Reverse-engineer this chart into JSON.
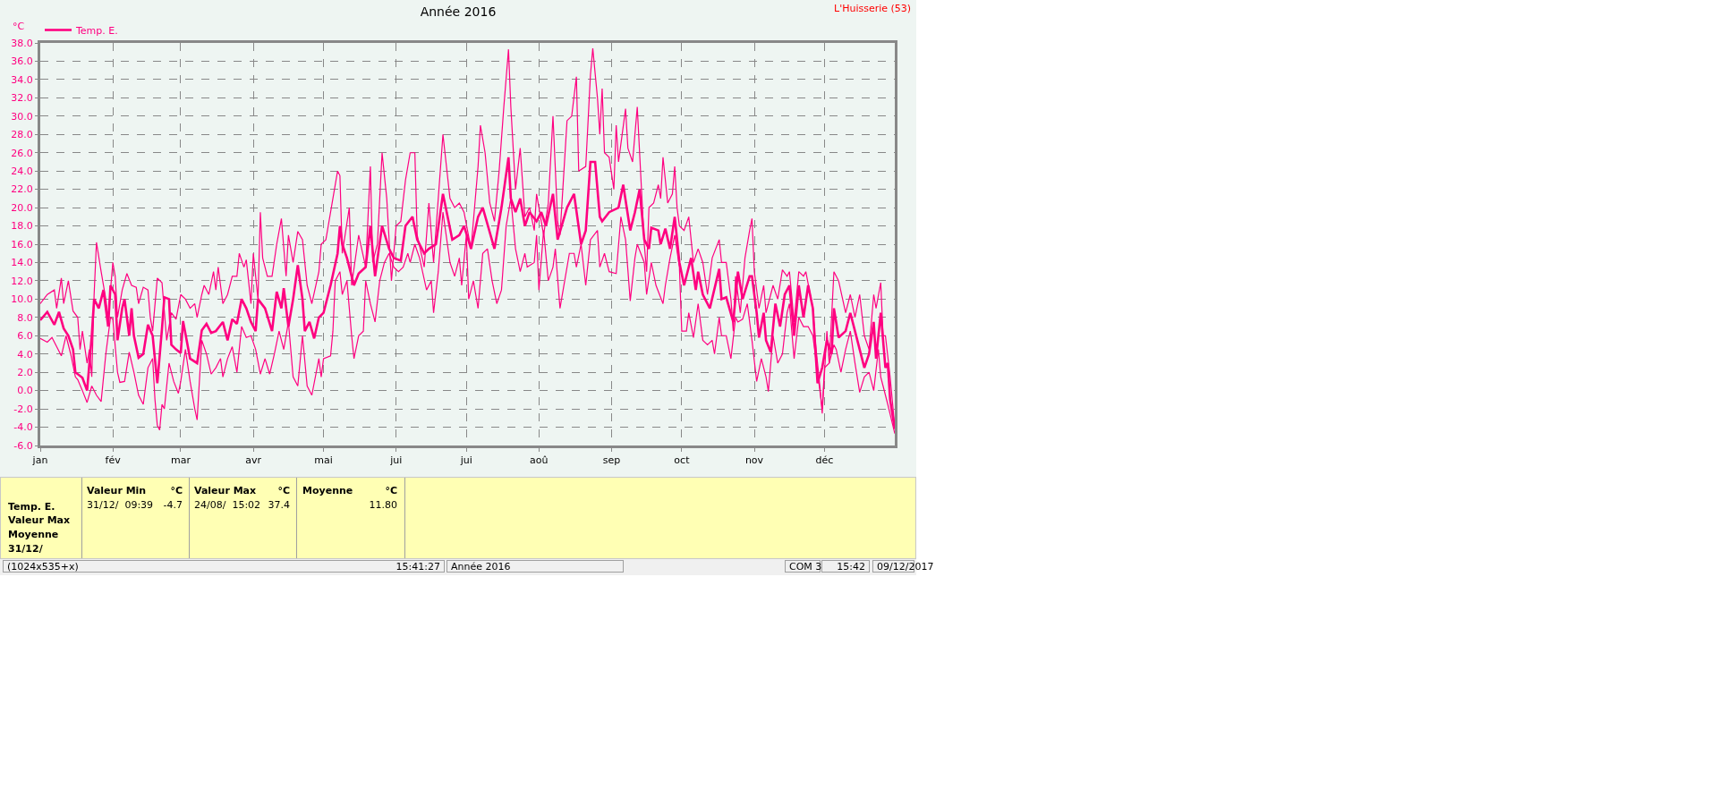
{
  "chart_data": {
    "type": "line",
    "title": "Année 2016",
    "ylabel": "°C",
    "xlim": [
      "2016-01-01",
      "2016-12-31"
    ],
    "xticks": [
      {
        "value": "2016-01-01",
        "label": "jan"
      },
      {
        "value": "2016-02-01",
        "label": "fév"
      },
      {
        "value": "2016-03-01",
        "label": "mar"
      },
      {
        "value": "2016-04-01",
        "label": "avr"
      },
      {
        "value": "2016-05-01",
        "label": "mai"
      },
      {
        "value": "2016-06-01",
        "label": "jui"
      },
      {
        "value": "2016-07-01",
        "label": "jui"
      },
      {
        "value": "2016-08-01",
        "label": "aoû"
      },
      {
        "value": "2016-09-01",
        "label": "sep"
      },
      {
        "value": "2016-10-01",
        "label": "oct"
      },
      {
        "value": "2016-11-01",
        "label": "nov"
      },
      {
        "value": "2016-12-01",
        "label": "déc"
      }
    ],
    "ylim": [
      -6,
      38
    ],
    "yticks": [
      {
        "value": -6,
        "label": "-6.0"
      },
      {
        "value": -4,
        "label": "-4.0"
      },
      {
        "value": -2,
        "label": "-2.0"
      },
      {
        "value": 0,
        "label": "0.0"
      },
      {
        "value": 2,
        "label": "2.0"
      },
      {
        "value": 4,
        "label": "4.0"
      },
      {
        "value": 6,
        "label": "6.0"
      },
      {
        "value": 8,
        "label": "8.0"
      },
      {
        "value": 10,
        "label": "10.0"
      },
      {
        "value": 12,
        "label": "12.0"
      },
      {
        "value": 14,
        "label": "14.0"
      },
      {
        "value": 16,
        "label": "16.0"
      },
      {
        "value": 18,
        "label": "18.0"
      },
      {
        "value": 20,
        "label": "20.0"
      },
      {
        "value": 22,
        "label": "22.0"
      },
      {
        "value": 24,
        "label": "24.0"
      },
      {
        "value": 26,
        "label": "26.0"
      },
      {
        "value": 28,
        "label": "28.0"
      },
      {
        "value": 30,
        "label": "30.0"
      },
      {
        "value": 32,
        "label": "32.0"
      },
      {
        "value": 34,
        "label": "34.0"
      },
      {
        "value": 36,
        "label": "36.0"
      },
      {
        "value": 38,
        "label": "38.0"
      }
    ],
    "grid": true,
    "legend": "top left",
    "marker": "none",
    "line_style": "solid",
    "series": [
      {
        "name": "Temp. E.",
        "color": "#ff0080",
        "x": [
          "2016-01-01",
          "2016-01-04",
          "2016-01-07",
          "2016-01-09",
          "2016-01-11",
          "2016-01-13",
          "2016-01-15",
          "2016-01-16",
          "2016-01-19",
          "2016-01-21",
          "2016-01-23",
          "2016-01-24",
          "2016-01-26",
          "2016-01-28",
          "2016-01-30",
          "2016-01-31",
          "2016-02-02",
          "2016-02-03",
          "2016-02-05",
          "2016-02-06",
          "2016-02-08",
          "2016-02-09",
          "2016-02-10",
          "2016-02-12",
          "2016-02-14",
          "2016-02-16",
          "2016-02-18",
          "2016-02-20",
          "2016-02-22",
          "2016-02-23",
          "2016-02-25",
          "2016-02-26",
          "2016-02-28",
          "2016-03-01",
          "2016-03-02",
          "2016-03-05",
          "2016-03-08",
          "2016-03-10",
          "2016-03-12",
          "2016-03-14",
          "2016-03-16",
          "2016-03-19",
          "2016-03-21",
          "2016-03-23",
          "2016-03-25",
          "2016-03-27",
          "2016-03-29",
          "2016-03-31",
          "2016-04-02",
          "2016-04-03",
          "2016-04-06",
          "2016-04-09",
          "2016-04-11",
          "2016-04-13",
          "2016-04-14",
          "2016-04-16",
          "2016-04-18",
          "2016-04-20",
          "2016-04-22",
          "2016-04-23",
          "2016-04-25",
          "2016-04-27",
          "2016-04-29",
          "2016-05-01",
          "2016-05-04",
          "2016-05-07",
          "2016-05-08",
          "2016-05-09",
          "2016-05-11",
          "2016-05-14",
          "2016-05-16",
          "2016-05-19",
          "2016-05-21",
          "2016-05-23",
          "2016-05-26",
          "2016-05-29",
          "2016-05-31",
          "2016-06-03",
          "2016-06-05",
          "2016-06-08",
          "2016-06-10",
          "2016-06-13",
          "2016-06-15",
          "2016-06-18",
          "2016-06-21",
          "2016-06-25",
          "2016-06-28",
          "2016-06-30",
          "2016-07-03",
          "2016-07-06",
          "2016-07-08",
          "2016-07-13",
          "2016-07-16",
          "2016-07-19",
          "2016-07-20",
          "2016-07-22",
          "2016-07-24",
          "2016-07-26",
          "2016-07-28",
          "2016-07-31",
          "2016-08-02",
          "2016-08-04",
          "2016-08-07",
          "2016-08-09",
          "2016-08-13",
          "2016-08-16",
          "2016-08-19",
          "2016-08-21",
          "2016-08-23",
          "2016-08-25",
          "2016-08-27",
          "2016-08-28",
          "2016-08-31",
          "2016-09-04",
          "2016-09-06",
          "2016-09-09",
          "2016-09-11",
          "2016-09-13",
          "2016-09-15",
          "2016-09-17",
          "2016-09-18",
          "2016-09-21",
          "2016-09-22",
          "2016-09-24",
          "2016-09-26",
          "2016-09-28",
          "2016-09-30",
          "2016-10-02",
          "2016-10-05",
          "2016-10-07",
          "2016-10-08",
          "2016-10-10",
          "2016-10-13",
          "2016-10-17",
          "2016-10-18",
          "2016-10-20",
          "2016-10-23",
          "2016-10-25",
          "2016-10-27",
          "2016-10-30",
          "2016-10-31",
          "2016-11-02",
          "2016-11-03",
          "2016-11-05",
          "2016-11-06",
          "2016-11-08",
          "2016-11-10",
          "2016-11-12",
          "2016-11-14",
          "2016-11-16",
          "2016-11-18",
          "2016-11-20",
          "2016-11-22",
          "2016-11-24",
          "2016-11-26",
          "2016-11-28",
          "2016-11-30",
          "2016-12-02",
          "2016-12-04",
          "2016-12-05",
          "2016-12-07",
          "2016-12-10",
          "2016-12-12",
          "2016-12-14",
          "2016-12-18",
          "2016-12-20",
          "2016-12-22",
          "2016-12-23",
          "2016-12-25",
          "2016-12-27",
          "2016-12-28",
          "2016-12-29",
          "2016-12-31"
        ],
        "values": [
          7.7,
          8.6,
          7.2,
          8.6,
          6.8,
          6.0,
          4.5,
          2.0,
          1.4,
          0.0,
          6.0,
          10.0,
          9.0,
          11.0,
          7.0,
          11.5,
          10.5,
          5.5,
          9.0,
          10.0,
          6.0,
          9.0,
          6.0,
          3.6,
          4.0,
          7.2,
          6.0,
          0.8,
          6.8,
          10.2,
          10.0,
          5.0,
          4.5,
          4.1,
          7.6,
          3.5,
          3.0,
          6.6,
          7.3,
          6.3,
          6.5,
          7.5,
          5.5,
          7.8,
          7.3,
          10.0,
          9.0,
          7.5,
          6.5,
          10.0,
          9.0,
          6.5,
          10.8,
          9.0,
          11.2,
          7.0,
          10.0,
          13.7,
          10.0,
          6.5,
          7.5,
          5.7,
          8.0,
          8.5,
          11.5,
          15,
          18,
          16,
          14.5,
          11.5,
          12.8,
          13.5,
          18,
          12.5,
          18,
          15.5,
          14.5,
          14.2,
          18,
          19,
          16.5,
          15,
          15.5,
          16,
          21.5,
          16.5,
          17,
          18,
          15.5,
          19,
          20,
          15.5,
          20,
          25.5,
          21,
          19.5,
          21,
          18,
          19.5,
          18.5,
          19.5,
          18,
          21.5,
          16.5,
          20,
          21.5,
          16,
          17.5,
          25,
          25,
          19,
          18.5,
          19.5,
          20,
          22.5,
          17.5,
          19.5,
          22,
          16.5,
          15.5,
          17.8,
          17.5,
          16,
          17.7,
          15.5,
          19,
          14,
          11.5,
          14.5,
          11,
          13,
          10.5,
          9,
          13.3,
          10,
          10.2,
          7.5,
          13,
          10,
          12.5,
          12.5,
          8.5,
          5.8,
          8.5,
          5.5,
          4.2,
          9.5,
          7.0,
          10.5,
          11.5,
          6,
          11.5,
          8,
          11.5,
          9,
          0.8,
          2.5,
          5.5,
          4.0,
          9.0,
          5.8,
          6.5,
          8.5,
          6.5,
          2.5,
          4.0,
          7.5,
          3.5,
          8.5,
          2.5,
          3.0,
          -1.0,
          -4.2
        ]
      },
      {
        "color": "#ff0080",
        "x": [
          "2016-01-01",
          "2016-01-04",
          "2016-01-07",
          "2016-01-08",
          "2016-01-10",
          "2016-01-11",
          "2016-01-13",
          "2016-01-15",
          "2016-01-17",
          "2016-01-18",
          "2016-01-19",
          "2016-01-21",
          "2016-01-22",
          "2016-01-23",
          "2016-01-24",
          "2016-01-25",
          "2016-01-27",
          "2016-01-29",
          "2016-01-30",
          "2016-02-01",
          "2016-02-02",
          "2016-02-03",
          "2016-02-05",
          "2016-02-07",
          "2016-02-09",
          "2016-02-11",
          "2016-02-12",
          "2016-02-14",
          "2016-02-16",
          "2016-02-17",
          "2016-02-18",
          "2016-02-20",
          "2016-02-22",
          "2016-02-24",
          "2016-02-26",
          "2016-02-28",
          "2016-03-01",
          "2016-03-03",
          "2016-03-05",
          "2016-03-07",
          "2016-03-08",
          "2016-03-10",
          "2016-03-11",
          "2016-03-13",
          "2016-03-15",
          "2016-03-16",
          "2016-03-17",
          "2016-03-19",
          "2016-03-21",
          "2016-03-23",
          "2016-03-25",
          "2016-03-26",
          "2016-03-28",
          "2016-03-29",
          "2016-03-31",
          "2016-04-01",
          "2016-04-03",
          "2016-04-04",
          "2016-04-05",
          "2016-04-07",
          "2016-04-09",
          "2016-04-11",
          "2016-04-13",
          "2016-04-15",
          "2016-04-16",
          "2016-04-18",
          "2016-04-20",
          "2016-04-22",
          "2016-04-24",
          "2016-04-26",
          "2016-04-29",
          "2016-04-30",
          "2016-05-02",
          "2016-05-07",
          "2016-05-08",
          "2016-05-09",
          "2016-05-12",
          "2016-05-13",
          "2016-05-16",
          "2016-05-19",
          "2016-05-21",
          "2016-05-22",
          "2016-05-24",
          "2016-05-26",
          "2016-05-28",
          "2016-05-30",
          "2016-06-01",
          "2016-06-03",
          "2016-06-05",
          "2016-06-07",
          "2016-06-09",
          "2016-06-10",
          "2016-06-13",
          "2016-06-15",
          "2016-06-17",
          "2016-06-19",
          "2016-06-21",
          "2016-06-24",
          "2016-06-26",
          "2016-06-28",
          "2016-06-30",
          "2016-07-03",
          "2016-07-06",
          "2016-07-07",
          "2016-07-09",
          "2016-07-11",
          "2016-07-13",
          "2016-07-15",
          "2016-07-17",
          "2016-07-19",
          "2016-07-20",
          "2016-07-22",
          "2016-07-24",
          "2016-07-26",
          "2016-07-28",
          "2016-07-30",
          "2016-07-31",
          "2016-08-03",
          "2016-08-05",
          "2016-08-07",
          "2016-08-09",
          "2016-08-10",
          "2016-08-13",
          "2016-08-15",
          "2016-08-17",
          "2016-08-18",
          "2016-08-21",
          "2016-08-23",
          "2016-08-24",
          "2016-08-26",
          "2016-08-27",
          "2016-08-28",
          "2016-08-29",
          "2016-08-31",
          "2016-09-02",
          "2016-09-03",
          "2016-09-04",
          "2016-09-07",
          "2016-09-08",
          "2016-09-10",
          "2016-09-12",
          "2016-09-13",
          "2016-09-15",
          "2016-09-16",
          "2016-09-17",
          "2016-09-19",
          "2016-09-21",
          "2016-09-22",
          "2016-09-23",
          "2016-09-25",
          "2016-09-27",
          "2016-09-28",
          "2016-09-29",
          "2016-09-30",
          "2016-10-02",
          "2016-10-04",
          "2016-10-06",
          "2016-10-08",
          "2016-10-10",
          "2016-10-12",
          "2016-10-14",
          "2016-10-17",
          "2016-10-18",
          "2016-10-20",
          "2016-10-22",
          "2016-10-23",
          "2016-10-24",
          "2016-10-26",
          "2016-10-28",
          "2016-10-30",
          "2016-10-31",
          "2016-11-01",
          "2016-11-03",
          "2016-11-05",
          "2016-11-06",
          "2016-11-09",
          "2016-11-11",
          "2016-11-13",
          "2016-11-15",
          "2016-11-16",
          "2016-11-18",
          "2016-11-20",
          "2016-11-22",
          "2016-11-23",
          "2016-11-26",
          "2016-11-27",
          "2016-11-29",
          "2016-11-30",
          "2016-12-02",
          "2016-12-03",
          "2016-12-05",
          "2016-12-07",
          "2016-12-10",
          "2016-12-12",
          "2016-12-14",
          "2016-12-16",
          "2016-12-18",
          "2016-12-20",
          "2016-12-22",
          "2016-12-23",
          "2016-12-25",
          "2016-12-26",
          "2016-12-27",
          "2016-12-29",
          "2016-12-31"
        ],
        "values": [
          9.5,
          10.5,
          11.0,
          9.0,
          12.3,
          9.5,
          12.0,
          8.7,
          8.0,
          4.5,
          6.5,
          3.0,
          4.5,
          1.5,
          10.5,
          16.2,
          13,
          10,
          8,
          14,
          12.5,
          8,
          11,
          12.8,
          11.5,
          11.3,
          9.5,
          11.3,
          11,
          8,
          6.5,
          12.3,
          11.8,
          5.5,
          8.5,
          7.8,
          10.5,
          10.0,
          9.0,
          9.5,
          8.0,
          10.5,
          11.5,
          10.5,
          13.0,
          11,
          13.5,
          9.5,
          10.5,
          12.5,
          12.5,
          15.0,
          13.5,
          14.3,
          9.5,
          15.0,
          10,
          19.5,
          14.5,
          12.5,
          12.5,
          16,
          18.8,
          12.5,
          17,
          14,
          17.4,
          16.5,
          11.5,
          9.5,
          13,
          16,
          16.5,
          24,
          23.5,
          15,
          20,
          11.5,
          17,
          13.5,
          24.5,
          14,
          16,
          26,
          21,
          12,
          18,
          18.5,
          23,
          26,
          26,
          17,
          13.5,
          20.5,
          14,
          21,
          28,
          21,
          20,
          20.5,
          19.5,
          15.5,
          24.5,
          29,
          26,
          20.5,
          18.5,
          24,
          31,
          37.3,
          31,
          22,
          26.5,
          19,
          20,
          17.5,
          21.5,
          17,
          20.5,
          30,
          18.5,
          17,
          29.5,
          30,
          34.3,
          24,
          24.5,
          34.5,
          37.4,
          32,
          28,
          33,
          26,
          25.5,
          22,
          29,
          25,
          30.8,
          26.5,
          25,
          31,
          26,
          16,
          13,
          20,
          20.5,
          22.5,
          21,
          25.5,
          20.5,
          21.5,
          24.5,
          20,
          18,
          17.5,
          19,
          14,
          15.5,
          14,
          10.5,
          14.5,
          16.5,
          14,
          14,
          10,
          6.5,
          12.5,
          8.5,
          14.5,
          17.5,
          18.8,
          13,
          9,
          11.5,
          8.5,
          11.5,
          10,
          13.2,
          12.5,
          13,
          7.5,
          13,
          12.5,
          13,
          9,
          5.5,
          0.5,
          -2.5,
          6.5,
          3,
          13,
          12,
          8.5,
          10.5,
          8,
          10.5,
          6,
          4.5,
          10.5,
          9,
          11.8,
          6,
          6,
          1.5,
          -4.0
        ]
      },
      {
        "color": "#ff0080",
        "x": [
          "2016-01-01",
          "2016-01-04",
          "2016-01-06",
          "2016-01-08",
          "2016-01-10",
          "2016-01-12",
          "2016-01-14",
          "2016-01-16",
          "2016-01-17",
          "2016-01-19",
          "2016-01-21",
          "2016-01-23",
          "2016-01-25",
          "2016-01-27",
          "2016-01-29",
          "2016-01-31",
          "2016-02-01",
          "2016-02-03",
          "2016-02-04",
          "2016-02-06",
          "2016-02-08",
          "2016-02-10",
          "2016-02-12",
          "2016-02-14",
          "2016-02-16",
          "2016-02-18",
          "2016-02-19",
          "2016-02-20",
          "2016-02-21",
          "2016-02-22",
          "2016-02-23",
          "2016-02-25",
          "2016-02-27",
          "2016-02-29",
          "2016-03-01",
          "2016-03-03",
          "2016-03-05",
          "2016-03-07",
          "2016-03-08",
          "2016-03-10",
          "2016-03-12",
          "2016-03-14",
          "2016-03-16",
          "2016-03-18",
          "2016-03-19",
          "2016-03-21",
          "2016-03-23",
          "2016-03-25",
          "2016-03-27",
          "2016-03-29",
          "2016-03-31",
          "2016-04-02",
          "2016-04-04",
          "2016-04-06",
          "2016-04-08",
          "2016-04-10",
          "2016-04-12",
          "2016-04-14",
          "2016-04-16",
          "2016-04-18",
          "2016-04-20",
          "2016-04-22",
          "2016-04-24",
          "2016-04-26",
          "2016-04-29",
          "2016-04-30",
          "2016-05-01",
          "2016-05-04",
          "2016-05-05",
          "2016-05-06",
          "2016-05-08",
          "2016-05-09",
          "2016-05-11",
          "2016-05-13",
          "2016-05-14",
          "2016-05-16",
          "2016-05-18",
          "2016-05-19",
          "2016-05-21",
          "2016-05-23",
          "2016-05-25",
          "2016-05-27",
          "2016-05-29",
          "2016-05-31",
          "2016-06-02",
          "2016-06-04",
          "2016-06-06",
          "2016-06-07",
          "2016-06-09",
          "2016-06-11",
          "2016-06-14",
          "2016-06-16",
          "2016-06-17",
          "2016-06-19",
          "2016-06-21",
          "2016-06-24",
          "2016-06-26",
          "2016-06-28",
          "2016-06-29",
          "2016-07-01",
          "2016-07-02",
          "2016-07-04",
          "2016-07-06",
          "2016-07-08",
          "2016-07-10",
          "2016-07-12",
          "2016-07-14",
          "2016-07-16",
          "2016-07-18",
          "2016-07-20",
          "2016-07-22",
          "2016-07-24",
          "2016-07-26",
          "2016-07-27",
          "2016-07-30",
          "2016-07-31",
          "2016-08-01",
          "2016-08-03",
          "2016-08-05",
          "2016-08-07",
          "2016-08-08",
          "2016-08-10",
          "2016-08-12",
          "2016-08-14",
          "2016-08-16",
          "2016-08-17",
          "2016-08-19",
          "2016-08-21",
          "2016-08-23",
          "2016-08-26",
          "2016-08-27",
          "2016-08-29",
          "2016-08-31",
          "2016-09-03",
          "2016-09-05",
          "2016-09-07",
          "2016-09-09",
          "2016-09-11",
          "2016-09-12",
          "2016-09-15",
          "2016-09-16",
          "2016-09-18",
          "2016-09-20",
          "2016-09-23",
          "2016-09-24",
          "2016-09-26",
          "2016-09-28",
          "2016-09-30",
          "2016-10-01",
          "2016-10-03",
          "2016-10-04",
          "2016-10-06",
          "2016-10-08",
          "2016-10-10",
          "2016-10-12",
          "2016-10-14",
          "2016-10-15",
          "2016-10-17",
          "2016-10-18",
          "2016-10-20",
          "2016-10-22",
          "2016-10-24",
          "2016-10-25",
          "2016-10-27",
          "2016-10-29",
          "2016-10-31",
          "2016-11-02",
          "2016-11-04",
          "2016-11-06",
          "2016-11-07",
          "2016-11-09",
          "2016-11-11",
          "2016-11-13",
          "2016-11-15",
          "2016-11-16",
          "2016-11-18",
          "2016-11-20",
          "2016-11-22",
          "2016-11-24",
          "2016-11-26",
          "2016-11-28",
          "2016-11-30",
          "2016-12-01",
          "2016-12-03",
          "2016-12-05",
          "2016-12-06",
          "2016-12-08",
          "2016-12-10",
          "2016-12-12",
          "2016-12-14",
          "2016-12-16",
          "2016-12-18",
          "2016-12-20",
          "2016-12-22",
          "2016-12-24",
          "2016-12-25",
          "2016-12-26",
          "2016-12-28",
          "2016-12-31"
        ],
        "values": [
          5.7,
          5.3,
          5.8,
          4.8,
          3.8,
          6,
          4,
          1.5,
          1.2,
          0,
          -1.3,
          0.5,
          -0.5,
          -1.2,
          4,
          8,
          7.8,
          2,
          0.9,
          1,
          4.2,
          2,
          -0.5,
          -1.5,
          2.5,
          3.5,
          -1,
          -3.8,
          -4.3,
          -1.5,
          -2,
          3,
          1,
          -0.3,
          1,
          4.5,
          1,
          -2,
          -3.2,
          5.5,
          4,
          1.8,
          2.5,
          3.5,
          1.5,
          3.5,
          4.8,
          2.0,
          7,
          5.8,
          6,
          4.5,
          1.8,
          3.5,
          1.8,
          4,
          6.5,
          4.5,
          7.5,
          1.5,
          0.5,
          6,
          0.5,
          -0.5,
          3.5,
          1.5,
          3.5,
          3.8,
          6.5,
          12,
          13,
          10.5,
          12,
          6,
          3.5,
          6,
          6.5,
          12,
          9.5,
          7.5,
          12,
          14,
          15,
          13.5,
          13,
          13.5,
          15,
          14,
          16,
          14.5,
          11,
          12,
          8.5,
          13,
          19.5,
          14,
          12.5,
          14.5,
          11.5,
          17,
          10,
          12,
          9,
          15,
          15.5,
          12,
          9.5,
          11,
          18,
          21,
          15.5,
          13,
          15,
          13.5,
          14,
          17,
          11,
          17.5,
          12,
          13.5,
          15.5,
          9,
          12,
          15,
          15,
          13.5,
          16,
          11.5,
          16.5,
          17.5,
          13.5,
          15,
          13,
          12.8,
          19,
          16.5,
          9.8,
          14.5,
          16,
          14,
          10.5,
          14,
          11.5,
          9.5,
          11.5,
          14.5,
          17,
          13.5,
          6.5,
          6.5,
          8.5,
          5.8,
          9.5,
          5.5,
          5,
          5.5,
          4,
          8,
          6,
          6,
          3.5,
          8,
          7.5,
          7.8,
          9.5,
          5.5,
          1.0,
          3.5,
          1.5,
          -0.1,
          6,
          3,
          4,
          8.5,
          9.5,
          3.5,
          8,
          7,
          7,
          6,
          2,
          -2,
          2.5,
          3,
          5,
          4.5,
          2,
          4.5,
          6.5,
          3,
          -0.2,
          1.5,
          2,
          0,
          4.5,
          1.5,
          0.5,
          -1.5,
          -4.7
        ]
      }
    ],
    "annotations": [
      "L'Huisserie (53)",
      "Temp. E.",
      "Valeur Max",
      "Moyenne",
      "31/12/",
      "Valeur Min",
      "°C",
      "31/12/  09:39",
      "-4.7",
      "Valeur Max",
      "°C",
      "24/08/  15:02",
      "37.4",
      "Moyenne",
      "°C",
      "11.80",
      "(1024x535+x)",
      "15:41:27",
      "Année 2016",
      "COM 3",
      "15:42",
      "09/12/2017"
    ]
  }
}
